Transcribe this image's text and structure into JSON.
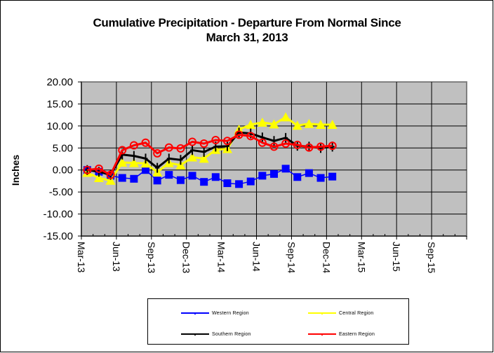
{
  "chart_data": {
    "type": "line",
    "title": [
      "Cumulative Precipitation - Departure From Normal Since",
      "March 31, 2013"
    ],
    "xlabel": "",
    "ylabel": "Inches",
    "ylim": [
      -15,
      20
    ],
    "yticks": [
      20,
      15,
      10,
      5,
      0,
      -5,
      -10,
      -15
    ],
    "ytick_labels": [
      "20.00",
      "15.00",
      "10.00",
      "5.00",
      "0.00",
      "-5.00",
      "-10.00",
      "-15.00"
    ],
    "xlim": [
      "2013-03-01",
      "2015-12-01"
    ],
    "xtick_labels": [
      "Mar-13",
      "Jun-13",
      "Sep-13",
      "Dec-13",
      "Mar-14",
      "Jun-14",
      "Sep-14",
      "Dec-14",
      "Mar-15",
      "Jun-15",
      "Sep-15"
    ],
    "grid": true,
    "legend_position": "bottom",
    "x": [
      "2013-03-31",
      "2013-04-30",
      "2013-05-31",
      "2013-06-30",
      "2013-07-31",
      "2013-08-31",
      "2013-09-30",
      "2013-10-31",
      "2013-11-30",
      "2013-12-31",
      "2014-01-31",
      "2014-02-28",
      "2014-03-31",
      "2014-04-30",
      "2014-05-31",
      "2014-06-30",
      "2014-07-31",
      "2014-08-31",
      "2014-09-30",
      "2014-10-31",
      "2014-11-30",
      "2014-12-31"
    ],
    "series": [
      {
        "name": "Western Region",
        "color": "#0000ff",
        "marker": "square",
        "values": [
          0.0,
          -0.4,
          -1.3,
          -1.8,
          -2.0,
          0.0,
          -2.4,
          -1.1,
          -2.3,
          -1.3,
          -2.7,
          -1.6,
          -3.0,
          -3.2,
          -2.6,
          -1.3,
          -0.9,
          0.3,
          -1.6,
          -0.7,
          -1.8,
          -1.5
        ]
      },
      {
        "name": "Central Region",
        "color": "#ffff00",
        "marker": "triangle",
        "values": [
          -0.6,
          -1.8,
          -2.4,
          1.7,
          1.6,
          1.5,
          -0.5,
          1.6,
          1.1,
          2.9,
          2.6,
          4.6,
          4.8,
          9.2,
          10.3,
          10.8,
          10.4,
          12.0,
          10.1,
          10.5,
          10.3,
          10.3
        ]
      },
      {
        "name": "Southern Region",
        "color": "#000000",
        "marker": "plus",
        "values": [
          0.0,
          -0.4,
          -1.1,
          3.5,
          3.2,
          2.6,
          0.5,
          2.6,
          2.3,
          4.5,
          4.1,
          5.3,
          5.4,
          8.5,
          8.3,
          7.4,
          6.6,
          7.3,
          5.5,
          5.3,
          5.0,
          5.3
        ]
      },
      {
        "name": "Eastern Region",
        "color": "#ff0000",
        "marker": "circle",
        "values": [
          0.0,
          0.3,
          -1.1,
          4.5,
          5.6,
          6.2,
          3.8,
          5.1,
          4.9,
          6.4,
          6.0,
          6.8,
          6.6,
          8.0,
          7.7,
          6.2,
          5.3,
          6.0,
          5.7,
          5.1,
          5.3,
          5.5
        ]
      }
    ]
  },
  "legend": {
    "items": [
      {
        "label": "Western Region",
        "color": "#0000ff"
      },
      {
        "label": "Central Region",
        "color": "#ffff00"
      },
      {
        "label": "Southern Region",
        "color": "#000000"
      },
      {
        "label": "Eastern Region",
        "color": "#ff0000"
      }
    ]
  },
  "colors": {
    "plot_background": "#c0c0c0",
    "plot_border": "#808080",
    "gridline": "#000000"
  }
}
